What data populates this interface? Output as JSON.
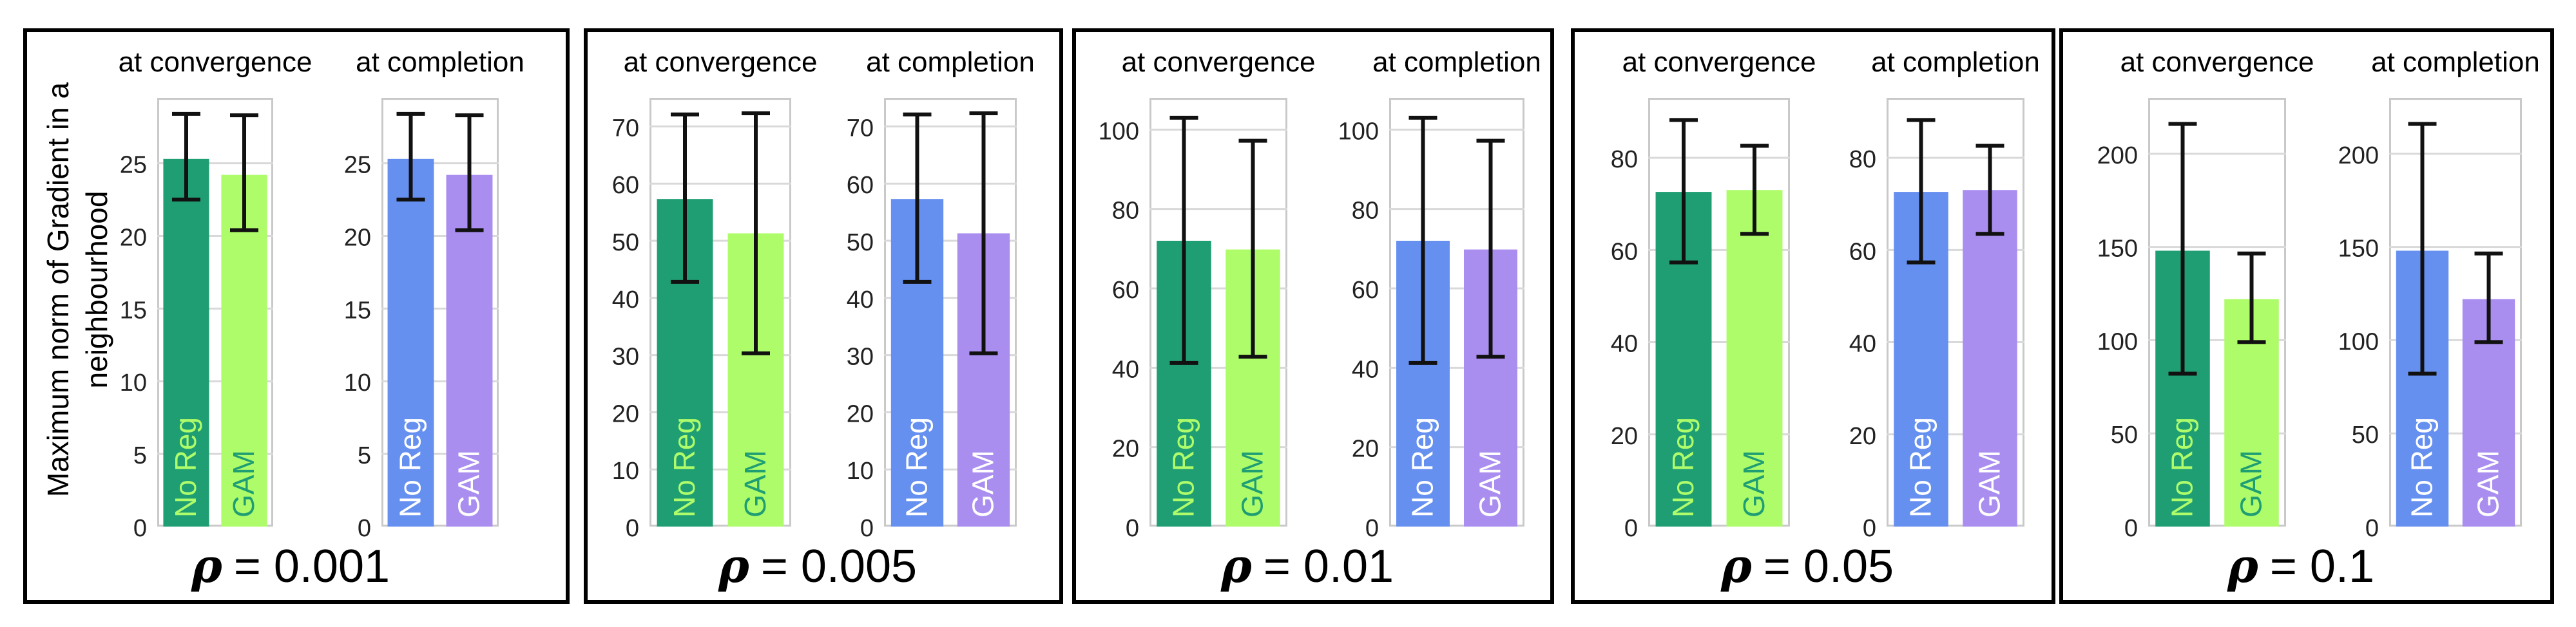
{
  "figure": {
    "ylabel": "Maximum norm of Gradient in a\nneighbourhood",
    "subplot_titles": [
      "at convergence",
      "at completion"
    ],
    "bar_labels": [
      "No Reg",
      "GAM"
    ],
    "rho_symbol": "ρ",
    "colors": {
      "convergence_noreg": "#1f9e74",
      "convergence_gam": "#aefc6a",
      "completion_noreg": "#6690f0",
      "completion_gam": "#a98ef0",
      "label_on_dark_green": "#aefc6a",
      "label_on_light_green": "#1f9e74",
      "label_on_blue_purple": "#ffffff"
    }
  },
  "chart_data": [
    {
      "type": "bar",
      "rho_value": "= 0.001",
      "categories": [
        "No Reg",
        "GAM"
      ],
      "series": [
        {
          "name": "at convergence",
          "values": [
            25.3,
            24.2
          ],
          "err_low": [
            22.5,
            20.4
          ],
          "err_high": [
            28.4,
            28.3
          ]
        },
        {
          "name": "at completion",
          "values": [
            25.3,
            24.2
          ],
          "err_low": [
            22.5,
            20.4
          ],
          "err_high": [
            28.4,
            28.3
          ]
        }
      ],
      "ylim": [
        0,
        29.5
      ],
      "yticks": [
        0,
        5,
        10,
        15,
        20,
        25
      ]
    },
    {
      "type": "bar",
      "rho_value": "= 0.005",
      "categories": [
        "No Reg",
        "GAM"
      ],
      "series": [
        {
          "name": "at convergence",
          "values": [
            57.3,
            51.3
          ],
          "err_low": [
            42.8,
            30.3
          ],
          "err_high": [
            72.1,
            72.3
          ]
        },
        {
          "name": "at completion",
          "values": [
            57.3,
            51.3
          ],
          "err_low": [
            42.8,
            30.3
          ],
          "err_high": [
            72.1,
            72.3
          ]
        }
      ],
      "ylim": [
        0,
        75
      ],
      "yticks": [
        0,
        10,
        20,
        30,
        40,
        50,
        60,
        70
      ]
    },
    {
      "type": "bar",
      "rho_value": "= 0.01",
      "categories": [
        "No Reg",
        "GAM"
      ],
      "series": [
        {
          "name": "at convergence",
          "values": [
            72,
            69.8
          ],
          "err_low": [
            41.2,
            42.8
          ],
          "err_high": [
            103,
            97.2
          ]
        },
        {
          "name": "at completion",
          "values": [
            72,
            69.8
          ],
          "err_low": [
            41.2,
            42.8
          ],
          "err_high": [
            103,
            97.2
          ]
        }
      ],
      "ylim": [
        0,
        108
      ],
      "yticks": [
        0,
        20,
        40,
        60,
        80,
        100
      ]
    },
    {
      "type": "bar",
      "rho_value": "= 0.05",
      "categories": [
        "No Reg",
        "GAM"
      ],
      "series": [
        {
          "name": "at convergence",
          "values": [
            72.6,
            73
          ],
          "err_low": [
            57.3,
            63.5
          ],
          "err_high": [
            88.2,
            82.6
          ]
        },
        {
          "name": "at completion",
          "values": [
            72.6,
            73
          ],
          "err_low": [
            57.3,
            63.5
          ],
          "err_high": [
            88.2,
            82.6
          ]
        }
      ],
      "ylim": [
        0,
        93
      ],
      "yticks": [
        0,
        20,
        40,
        60,
        80
      ]
    },
    {
      "type": "bar",
      "rho_value": "= 0.1",
      "categories": [
        "No Reg",
        "GAM"
      ],
      "series": [
        {
          "name": "at convergence",
          "values": [
            148,
            122
          ],
          "err_low": [
            82,
            99
          ],
          "err_high": [
            216,
            146.5
          ]
        },
        {
          "name": "at completion",
          "values": [
            148,
            122
          ],
          "err_low": [
            82,
            99
          ],
          "err_high": [
            216,
            146.5
          ]
        }
      ],
      "ylim": [
        0,
        230
      ],
      "yticks": [
        0,
        50,
        100,
        150,
        200
      ]
    }
  ]
}
